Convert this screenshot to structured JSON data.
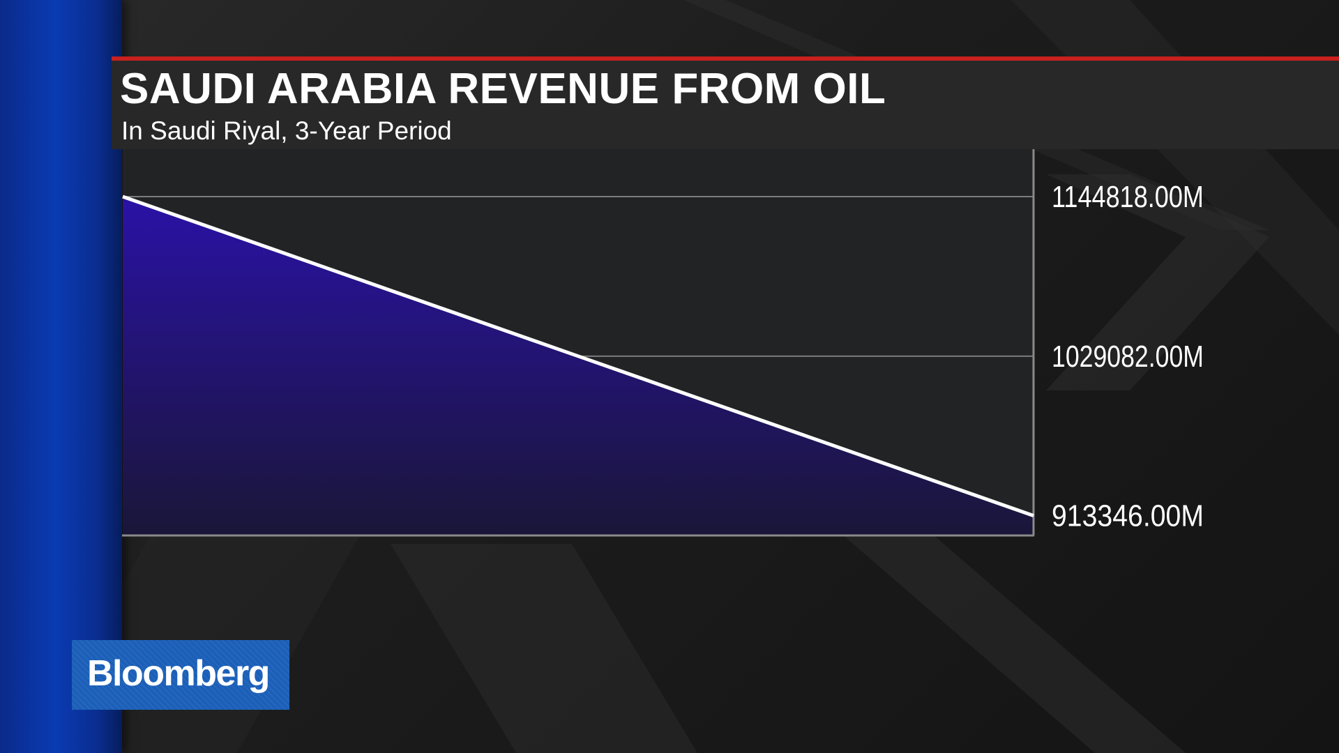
{
  "header": {
    "title": "SAUDI ARABIA REVENUE FROM OIL",
    "subtitle": "In Saudi Riyal, 3-Year Period"
  },
  "brand": {
    "logo_text": "Bloomberg"
  },
  "colors": {
    "accent_bar": "#c8201e",
    "area_fill_top": "#2a12a6",
    "area_fill_bottom": "#1a1638",
    "line": "#ffffff",
    "left_band": "#0a3bb3",
    "logo_bg": "#1b5fb8"
  },
  "chart_data": {
    "type": "area",
    "title": "SAUDI ARABIA REVENUE FROM OIL",
    "subtitle": "In Saudi Riyal, 3-Year Period",
    "xlabel": "",
    "ylabel": "",
    "x": [
      0,
      1,
      2
    ],
    "values": [
      1144818,
      1029082,
      913346
    ],
    "ylim": [
      899000,
      1144818
    ],
    "y_ticks": [
      1144818,
      1029082,
      913346
    ],
    "y_tick_labels": [
      "1144818.00M",
      "1029082.00M",
      "913346.00M"
    ],
    "y_axis_side": "right",
    "grid": true,
    "legend": "none"
  }
}
